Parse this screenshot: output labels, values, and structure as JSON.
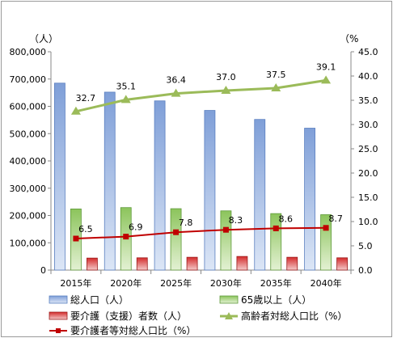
{
  "chart_data": {
    "type": "bar",
    "categories": [
      "2015年",
      "2020年",
      "2025年",
      "2030年",
      "2035年",
      "2040年"
    ],
    "y_left": {
      "unit": "（人）",
      "range": [
        0,
        800000
      ],
      "ticks": [
        "0",
        "100,000",
        "200,000",
        "300,000",
        "400,000",
        "500,000",
        "600,000",
        "700,000",
        "800,000"
      ]
    },
    "y_right": {
      "unit": "（%",
      "range": [
        0,
        45
      ],
      "ticks": [
        "0.0",
        "5.0",
        "10.0",
        "15.0",
        "20.0",
        "25.0",
        "30.0",
        "35.0",
        "40.0",
        "45.0"
      ]
    },
    "series": [
      {
        "name": "総人口（人）",
        "kind": "bar",
        "axis": "left",
        "color": "#7f9fd8",
        "values": [
          685000,
          652000,
          620000,
          585000,
          552000,
          520000
        ]
      },
      {
        "name": "65歳以上（人）",
        "kind": "bar",
        "axis": "left",
        "color": "#8cc45c",
        "values": [
          224000,
          229000,
          225000,
          217000,
          207000,
          203000
        ]
      },
      {
        "name": "要介護（支援）者数（人）",
        "kind": "bar",
        "axis": "left",
        "color": "#d42c2c",
        "values": [
          44000,
          45000,
          47000,
          50000,
          47000,
          45000
        ]
      },
      {
        "name": "高齢者対総人口比（%）",
        "kind": "line",
        "axis": "right",
        "color": "#9bbb59",
        "marker": "triangle",
        "values": [
          32.7,
          35.1,
          36.4,
          37.0,
          37.5,
          39.1
        ],
        "labels": [
          "32.7",
          "35.1",
          "36.4",
          "37.0",
          "37.5",
          "39.1"
        ]
      },
      {
        "name": "要介護者等対総人口比（%）",
        "kind": "line",
        "axis": "right",
        "color": "#c00000",
        "marker": "square",
        "values": [
          6.5,
          6.9,
          7.8,
          8.3,
          8.6,
          8.7
        ],
        "labels": [
          "6.5",
          "6.9",
          "7.8",
          "8.3",
          "8.6",
          "8.7"
        ]
      }
    ],
    "grid": false,
    "legend_position": "bottom"
  }
}
